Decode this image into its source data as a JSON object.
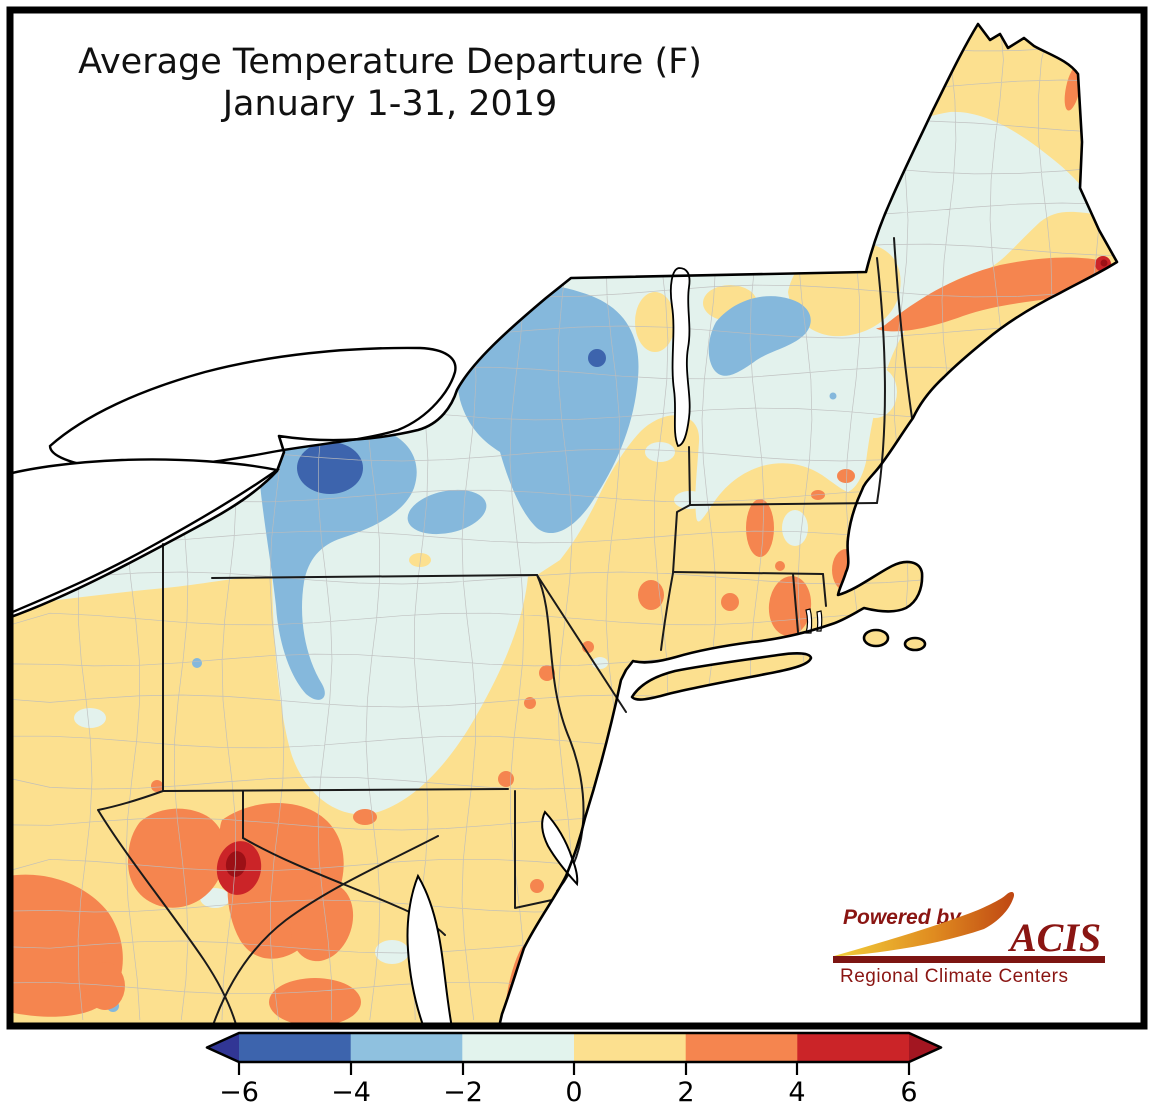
{
  "title": {
    "line1": "Average Temperature Departure (F)",
    "line2": "January 1-31, 2019"
  },
  "colorbar": {
    "ticks": [
      "−6",
      "−4",
      "−2",
      "0",
      "2",
      "4",
      "6"
    ],
    "unit": "F",
    "segments": [
      {
        "label": "-6 to -4",
        "color": "#3d64ad"
      },
      {
        "label": "-4 to -2",
        "color": "#8fc1df"
      },
      {
        "label": "-2 to 0",
        "color": "#e2f3ed"
      },
      {
        "label": "0 to 2",
        "color": "#fce08f"
      },
      {
        "label": "2 to 4",
        "color": "#f5854f"
      },
      {
        "label": "4 to 6",
        "color": "#cb2428"
      }
    ],
    "arrow_left_color": "#313695",
    "arrow_right_color": "#a31621"
  },
  "palette": {
    "c_neg6_4": "#3d64ad",
    "c_neg4_2": "#85b8dc",
    "c_neg2_0": "#e3f2ed",
    "c_pos0_2": "#fce08f",
    "c_pos2_4": "#f5854f",
    "c_pos4_6": "#cb2428",
    "c_pos6": "#9c1016",
    "water": "#ffffff",
    "coast_line": "#000000",
    "state_line": "#1a1a1a",
    "county_line": "#bdbdbd",
    "frame": "#000000"
  },
  "logo": {
    "powered_by": "Powered by",
    "acis": "ACIS",
    "tagline": "Regional Climate Centers",
    "text_color": "#8a1512",
    "bar_color": "#7d1512",
    "swoosh_from": "#f2cf3a",
    "swoosh_mid": "#e08c20",
    "swoosh_to": "#bf4713"
  },
  "map_regions": [
    {
      "area": "central and western New York, northern Vermont",
      "departure_f": "-2 to -4"
    },
    {
      "area": "cores near Rochester NY and eastern Adirondacks",
      "departure_f": "-4 to -6"
    },
    {
      "area": "most of New York, northern Pennsylvania, interior New England, northwest Maine",
      "departure_f": "0 to -2"
    },
    {
      "area": "southern Pennsylvania, New Jersey, Maryland, Virginia, West Virginia, southern New England, coastal and far northern Maine",
      "departure_f": "0 to +2"
    },
    {
      "area": "central Maine band, eastern Massachusetts spots, West Virginia / southwest Virginia blobs",
      "departure_f": "+2 to +4"
    },
    {
      "area": "core on West Virginia–Virginia border and spot in eastern Maine",
      "departure_f": "+4 to over +6"
    }
  ]
}
